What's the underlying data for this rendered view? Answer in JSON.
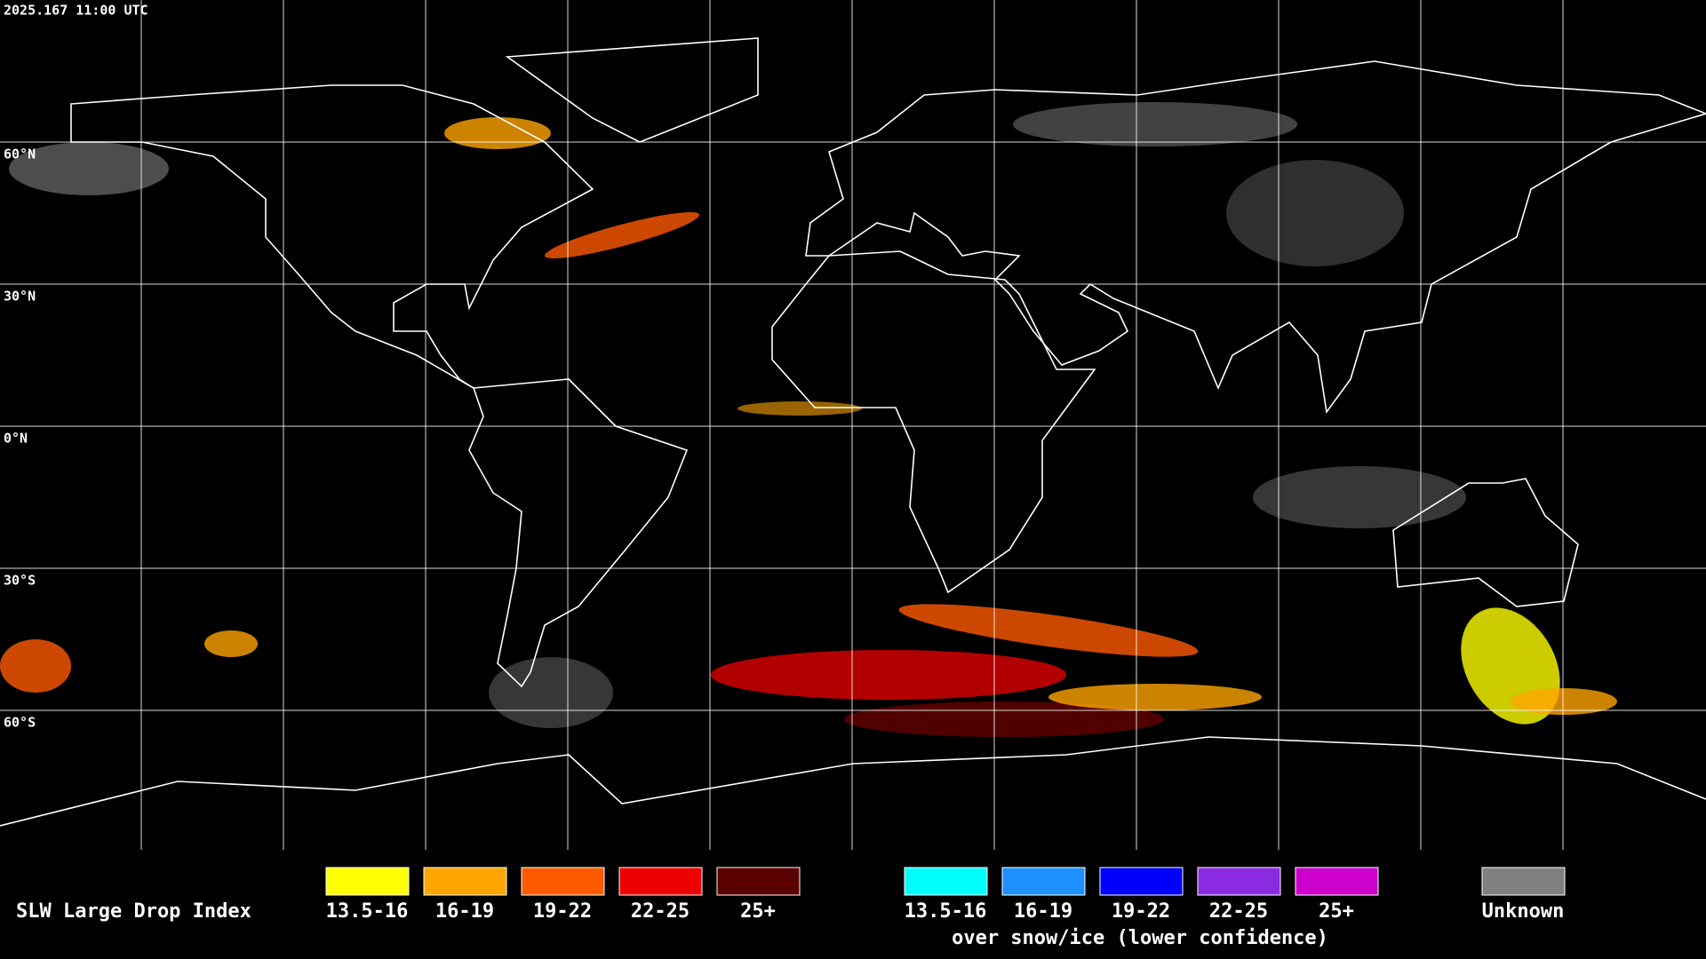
{
  "timestamp": "2025.167 11:00 UTC",
  "lat_labels": [
    "60°N",
    "30°N",
    "0°N",
    "30°S",
    "60°S"
  ],
  "legend": {
    "title": "SLW Large Drop Index",
    "items": [
      {
        "label": "13.5-16",
        "color": "#ffff00"
      },
      {
        "label": "16-19",
        "color": "#ffa500"
      },
      {
        "label": "19-22",
        "color": "#ff5a00"
      },
      {
        "label": "22-25",
        "color": "#ee0000"
      },
      {
        "label": "25+",
        "color": "#5a0000"
      }
    ],
    "snow_items": [
      {
        "label": "13.5-16",
        "color": "#00ffff"
      },
      {
        "label": "16-19",
        "color": "#1e90ff"
      },
      {
        "label": "19-22",
        "color": "#0000ff"
      },
      {
        "label": "22-25",
        "color": "#8a2be2"
      },
      {
        "label": "25+",
        "color": "#cc00cc"
      }
    ],
    "snow_caption": "over snow/ice (lower confidence)",
    "unknown": {
      "label": "Unknown",
      "color": "#808080"
    }
  }
}
